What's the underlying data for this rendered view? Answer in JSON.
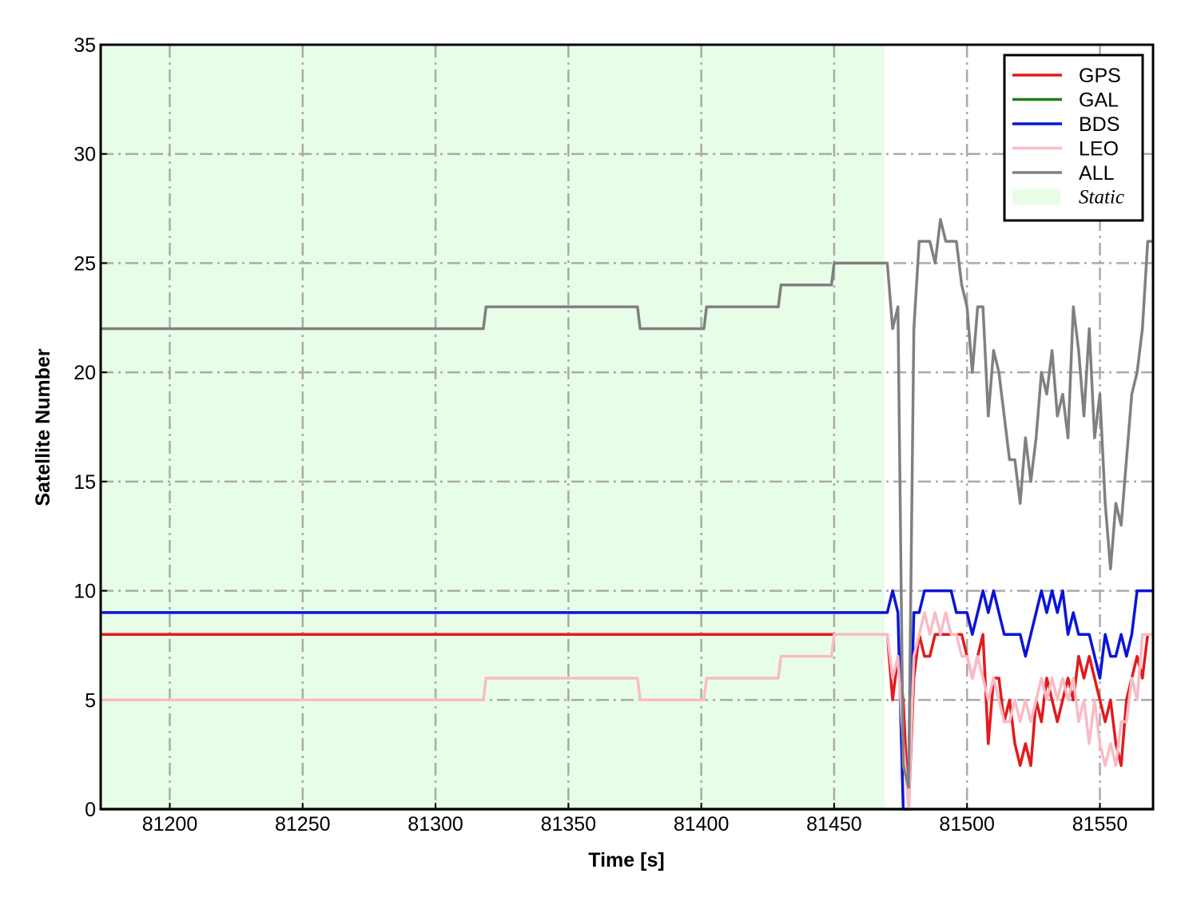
{
  "chart_data": {
    "type": "line",
    "xlabel": "Time [s]",
    "ylabel": "Satellite Number",
    "x": [
      81174,
      81318,
      81319,
      81376,
      81377,
      81401,
      81402,
      81429,
      81430,
      81449,
      81450,
      81470,
      81472,
      81474,
      81476,
      81478,
      81480,
      81482,
      81484,
      81486,
      81488,
      81490,
      81492,
      81494,
      81496,
      81498,
      81500,
      81502,
      81504,
      81506,
      81508,
      81510,
      81512,
      81514,
      81516,
      81518,
      81520,
      81522,
      81524,
      81526,
      81528,
      81530,
      81532,
      81534,
      81536,
      81538,
      81540,
      81542,
      81544,
      81546,
      81548,
      81550,
      81552,
      81554,
      81556,
      81558,
      81560,
      81562,
      81564,
      81566,
      81568,
      81570
    ],
    "series": [
      {
        "name": "GPS",
        "color": "#e31a1c",
        "values": [
          8,
          8,
          8,
          8,
          8,
          8,
          8,
          8,
          8,
          8,
          8,
          8,
          5,
          7,
          5,
          0,
          6,
          8,
          7,
          7,
          8,
          8,
          8,
          8,
          8,
          8,
          7,
          6,
          7,
          8,
          3,
          6,
          6,
          4,
          5,
          3,
          2,
          3,
          2,
          5,
          4,
          6,
          5,
          4,
          5,
          6,
          5,
          7,
          6,
          7,
          6,
          5,
          4,
          5,
          3,
          2,
          5,
          6,
          7,
          6,
          8,
          8
        ]
      },
      {
        "name": "GAL",
        "color": "#1a7f1a",
        "values": [
          0,
          0,
          0,
          0,
          0,
          0,
          0,
          0,
          0,
          0,
          0,
          0,
          0,
          0,
          0,
          0,
          0,
          0,
          0,
          0,
          0,
          0,
          0,
          0,
          0,
          0,
          0,
          0,
          0,
          0,
          0,
          0,
          0,
          0,
          0,
          0,
          0,
          0,
          0,
          0,
          0,
          0,
          0,
          0,
          0,
          0,
          0,
          0,
          0,
          0,
          0,
          0,
          0,
          0,
          0,
          0,
          0,
          0,
          0,
          0,
          0,
          0
        ]
      },
      {
        "name": "BDS",
        "color": "#0a14d8",
        "values": [
          9,
          9,
          9,
          9,
          9,
          9,
          9,
          9,
          9,
          9,
          9,
          9,
          10,
          9,
          0,
          0,
          9,
          9,
          10,
          10,
          10,
          10,
          10,
          10,
          9,
          9,
          9,
          8,
          9,
          10,
          9,
          10,
          9,
          8,
          8,
          8,
          8,
          7,
          8,
          9,
          10,
          9,
          10,
          9,
          10,
          8,
          9,
          8,
          8,
          8,
          7,
          6,
          8,
          7,
          7,
          8,
          7,
          8,
          10,
          10,
          10,
          10
        ]
      },
      {
        "name": "LEO",
        "color": "#f8bcc4",
        "values": [
          5,
          5,
          6,
          6,
          5,
          5,
          6,
          6,
          7,
          7,
          8,
          8,
          6,
          7,
          3,
          0,
          7,
          8,
          9,
          8,
          9,
          8,
          9,
          8,
          8,
          7,
          7,
          6,
          7,
          6,
          5,
          6,
          5,
          4,
          4,
          5,
          4,
          5,
          4,
          5,
          6,
          5,
          6,
          5,
          6,
          5,
          6,
          4,
          5,
          3,
          5,
          3,
          2,
          3,
          2,
          4,
          4,
          6,
          5,
          8,
          8,
          8
        ]
      },
      {
        "name": "ALL",
        "color": "#808080",
        "values": [
          22,
          22,
          23,
          23,
          22,
          22,
          23,
          23,
          24,
          24,
          25,
          25,
          22,
          23,
          2,
          1,
          22,
          26,
          26,
          26,
          25,
          27,
          26,
          26,
          26,
          24,
          23,
          20,
          23,
          23,
          18,
          21,
          20,
          18,
          16,
          16,
          14,
          17,
          15,
          17,
          20,
          19,
          21,
          18,
          19,
          17,
          23,
          21,
          18,
          22,
          17,
          19,
          14,
          11,
          14,
          13,
          16,
          19,
          20,
          22,
          26,
          26
        ]
      }
    ],
    "shaded": {
      "x": [
        81174,
        81469
      ],
      "label": "Static",
      "color": "#e8fde8"
    },
    "xlim": [
      81174,
      81570
    ],
    "ylim": [
      0,
      35
    ],
    "xticks": [
      81200,
      81250,
      81300,
      81350,
      81400,
      81450,
      81500,
      81550
    ],
    "yticks": [
      0,
      5,
      10,
      15,
      20,
      25,
      30,
      35
    ],
    "grid": true,
    "legend": "upper right"
  }
}
